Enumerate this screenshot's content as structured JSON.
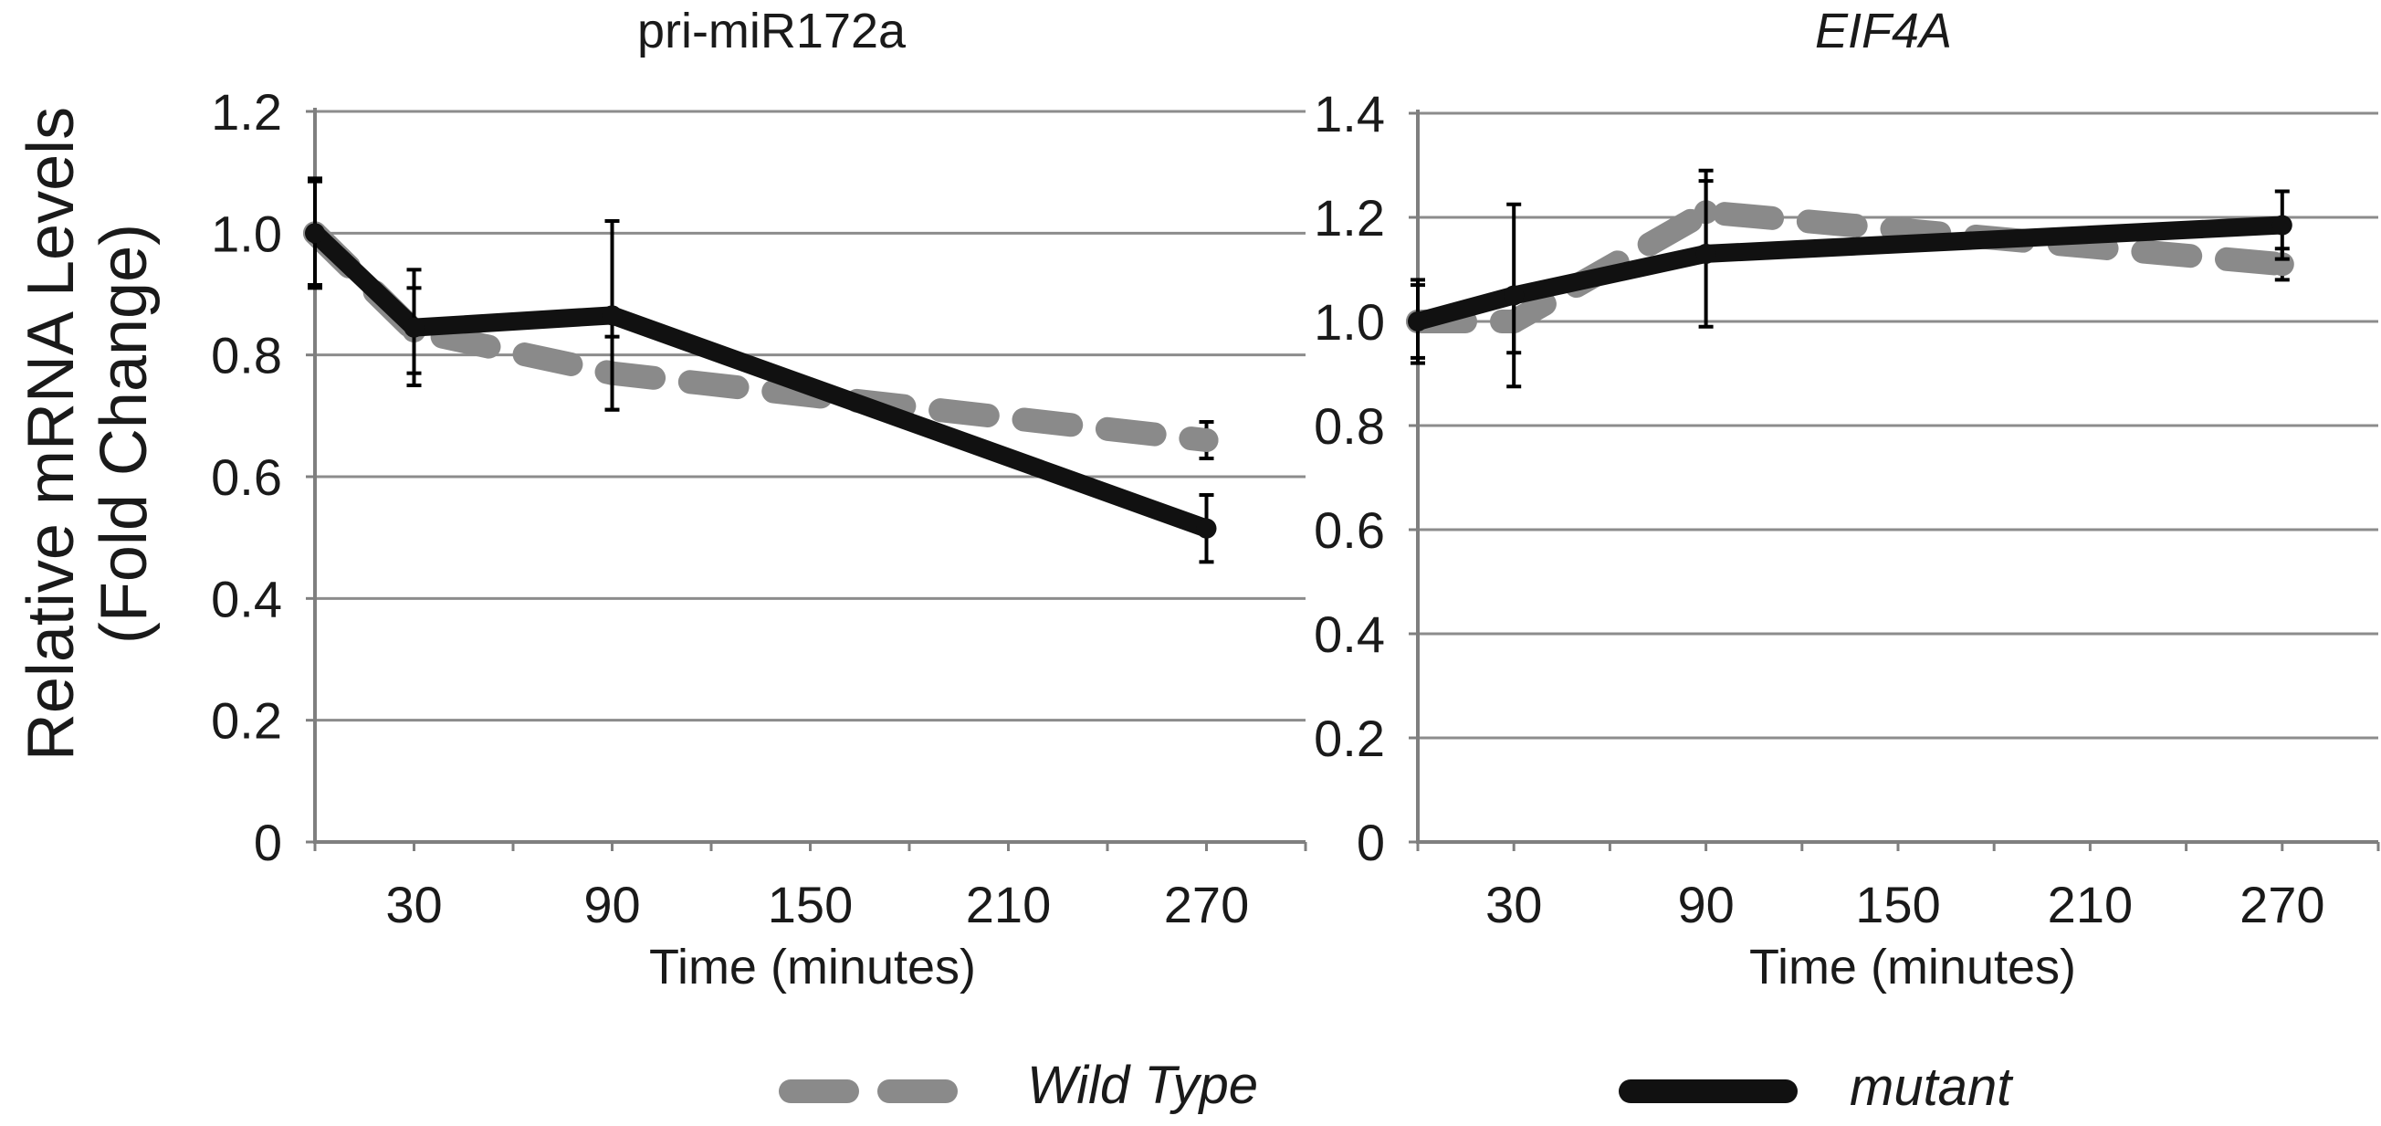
{
  "colors": {
    "wild_type": "#8a8a8a",
    "mutant": "#111111",
    "gridline": "#8c8c8c",
    "axis": "#7f7f7f"
  },
  "shared": {
    "ylabel_line1": "Relative mRNA Levels",
    "ylabel_line2": "(Fold Change)"
  },
  "legend": {
    "position": "bottom",
    "wild_type": "Wild Type",
    "mutant": "mutant"
  },
  "chart_data": [
    {
      "type": "line",
      "title": "pri-miR172a",
      "title_italic": false,
      "xlabel": "Time (minutes)",
      "xlim": [
        0,
        300
      ],
      "xticks": [
        30,
        90,
        150,
        210,
        270
      ],
      "ylim": [
        0,
        1.2
      ],
      "yticks": [
        "0",
        "0.2",
        "0.4",
        "0.6",
        "0.8",
        "1.0",
        "1.2"
      ],
      "grid": true,
      "series": [
        {
          "name": "Wild Type",
          "style": "dashed",
          "x": [
            0,
            30,
            90,
            270
          ],
          "y": [
            1.0,
            0.84,
            0.77,
            0.66
          ],
          "err": [
            0.09,
            0.07,
            0.06,
            0.03
          ]
        },
        {
          "name": "mutant",
          "style": "solid",
          "x": [
            0,
            30,
            90,
            270
          ],
          "y": [
            1.0,
            0.845,
            0.865,
            0.515
          ],
          "err": [
            0.085,
            0.095,
            0.155,
            0.055
          ]
        }
      ]
    },
    {
      "type": "line",
      "title": "EIF4A",
      "title_italic": true,
      "xlabel": "Time (minutes)",
      "xlim": [
        0,
        300
      ],
      "xticks": [
        30,
        90,
        150,
        210,
        270
      ],
      "ylim": [
        0,
        1.4
      ],
      "yticks": [
        "0",
        "0.2",
        "0.4",
        "0.6",
        "0.8",
        "1.0",
        "1.2",
        "1.4"
      ],
      "grid": true,
      "series": [
        {
          "name": "Wild Type",
          "style": "dashed",
          "x": [
            0,
            30,
            90,
            270
          ],
          "y": [
            1.0,
            1.0,
            1.21,
            1.11
          ],
          "err": [
            0.07,
            0.06,
            0.08,
            0.03
          ]
        },
        {
          "name": "mutant",
          "style": "solid",
          "x": [
            0,
            30,
            90,
            270
          ],
          "y": [
            1.0,
            1.05,
            1.13,
            1.185
          ],
          "err": [
            0.08,
            0.175,
            0.14,
            0.065
          ]
        }
      ]
    }
  ]
}
